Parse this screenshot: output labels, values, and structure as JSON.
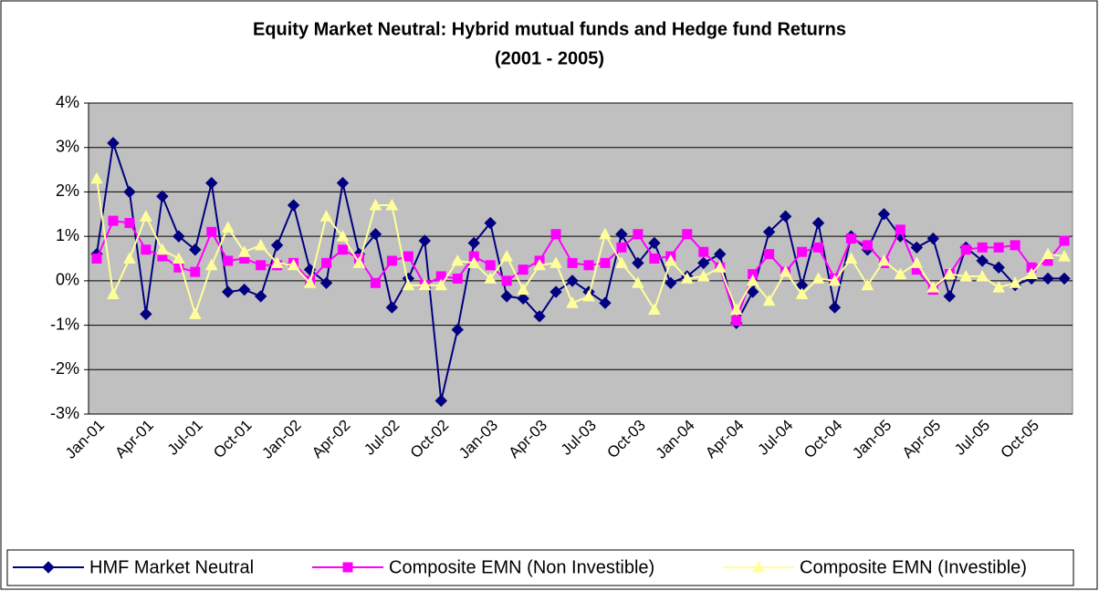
{
  "chart_data": {
    "type": "line",
    "title": "Equity Market Neutral: Hybrid mutual funds and Hedge fund Returns",
    "subtitle": "(2001 - 2005)",
    "categories": [
      "Jan-01",
      null,
      null,
      "Apr-01",
      null,
      null,
      "Jul-01",
      null,
      null,
      "Oct-01",
      null,
      null,
      "Jan-02",
      null,
      null,
      "Apr-02",
      null,
      null,
      "Jul-02",
      null,
      null,
      "Oct-02",
      null,
      null,
      "Jan-03",
      null,
      null,
      "Apr-03",
      null,
      null,
      "Jul-03",
      null,
      null,
      "Oct-03",
      null,
      null,
      "Jan-04",
      null,
      null,
      "Apr-04",
      null,
      null,
      "Jul-04",
      null,
      null,
      "Oct-04",
      null,
      null,
      "Jan-05",
      null,
      null,
      "Apr-05",
      null,
      null,
      "Jul-05",
      null,
      null,
      "Oct-05",
      null,
      null
    ],
    "series": [
      {
        "name": "HMF Market Neutral",
        "color": "#000080",
        "marker": "diamond",
        "values": [
          0.6,
          3.1,
          2.0,
          -0.75,
          1.9,
          1.0,
          0.7,
          2.2,
          -0.25,
          -0.2,
          -0.35,
          0.8,
          1.7,
          0.25,
          -0.05,
          2.2,
          0.6,
          1.05,
          -0.6,
          0.05,
          0.9,
          -2.7,
          -1.1,
          0.85,
          1.3,
          -0.35,
          -0.4,
          -0.8,
          -0.25,
          0.0,
          -0.25,
          -0.5,
          1.05,
          0.4,
          0.85,
          -0.05,
          0.1,
          0.4,
          0.6,
          -0.95,
          -0.25,
          1.1,
          1.45,
          -0.1,
          1.3,
          -0.6,
          1.0,
          0.7,
          1.5,
          1.0,
          0.75,
          0.95,
          -0.35,
          0.75,
          0.45,
          0.3,
          -0.1,
          0.05,
          0.05,
          0.05
        ]
      },
      {
        "name": "Composite EMN (Non Investible)",
        "color": "#ff00ff",
        "marker": "square",
        "values": [
          0.5,
          1.35,
          1.3,
          0.7,
          0.55,
          0.3,
          0.2,
          1.1,
          0.45,
          0.5,
          0.35,
          0.35,
          0.4,
          0.0,
          0.4,
          0.7,
          0.5,
          -0.05,
          0.45,
          0.55,
          -0.1,
          0.1,
          0.05,
          0.55,
          0.35,
          0.0,
          0.25,
          0.45,
          1.05,
          0.4,
          0.35,
          0.4,
          0.75,
          1.05,
          0.5,
          0.55,
          1.05,
          0.65,
          0.3,
          -0.9,
          0.15,
          0.6,
          0.2,
          0.65,
          0.75,
          0.05,
          0.95,
          0.8,
          0.4,
          1.15,
          0.25,
          -0.2,
          0.15,
          0.7,
          0.75,
          0.75,
          0.8,
          0.3,
          0.45,
          0.9
        ]
      },
      {
        "name": "Composite EMN (Investible)",
        "color": "#ffff99",
        "marker": "triangle",
        "values": [
          2.3,
          -0.3,
          0.5,
          1.45,
          0.7,
          0.5,
          -0.75,
          0.35,
          1.2,
          0.65,
          0.8,
          0.4,
          0.35,
          -0.05,
          1.45,
          1.0,
          0.4,
          1.7,
          1.7,
          -0.1,
          -0.1,
          -0.1,
          0.45,
          0.4,
          0.05,
          0.55,
          -0.2,
          0.35,
          0.4,
          -0.5,
          -0.35,
          1.05,
          0.4,
          -0.05,
          -0.65,
          0.45,
          0.05,
          0.1,
          0.3,
          -0.65,
          0.0,
          -0.45,
          0.2,
          -0.3,
          0.05,
          0.0,
          0.5,
          -0.1,
          0.45,
          0.15,
          0.4,
          -0.15,
          0.15,
          0.1,
          0.1,
          -0.15,
          -0.05,
          0.15,
          0.6,
          0.55
        ]
      }
    ],
    "ylim": [
      -3,
      4
    ],
    "yticks": [
      {
        "value": -3,
        "label": "-3%"
      },
      {
        "value": -2,
        "label": "-2%"
      },
      {
        "value": -1,
        "label": "-1%"
      },
      {
        "value": 0,
        "label": "0%"
      },
      {
        "value": 1,
        "label": "1%"
      },
      {
        "value": 2,
        "label": "2%"
      },
      {
        "value": 3,
        "label": "3%"
      },
      {
        "value": 4,
        "label": "4%"
      }
    ],
    "grid": true,
    "plot_background": "#c0c0c0",
    "legend": "bottom"
  }
}
